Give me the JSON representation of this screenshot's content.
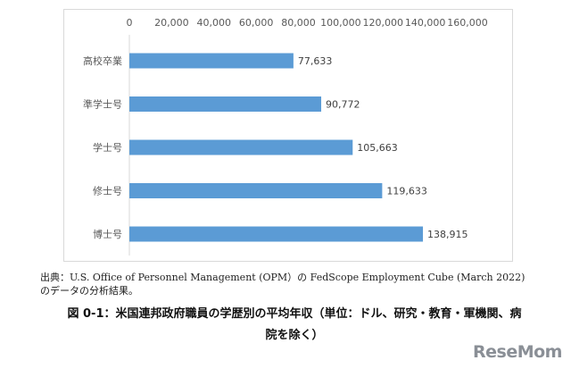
{
  "chart_data": {
    "type": "bar",
    "orientation": "horizontal",
    "categories": [
      "高校卒業",
      "準学士号",
      "学士号",
      "修士号",
      "博士号"
    ],
    "values": [
      77633,
      90772,
      105663,
      119633,
      138915
    ],
    "value_labels": [
      "77,633",
      "90,772",
      "105,663",
      "119,633",
      "138,915"
    ],
    "x_ticks": [
      "0",
      "20,000",
      "40,000",
      "60,000",
      "80,000",
      "100,000",
      "120,000",
      "140,000",
      "160,000"
    ],
    "xlim": [
      0,
      160000
    ],
    "axis_position": "top",
    "grid": false,
    "bar_color": "#5b9bd5"
  },
  "source_note": {
    "line1": "出典：U.S. Office of Personnel Management (OPM）の FedScope Employment Cube (March 2022)",
    "line2": "のデータの分析結果。"
  },
  "caption": {
    "line1": "図 0-1：米国連邦政府職員の学歴別の平均年収（単位：ドル、研究・教育・軍機関、病",
    "line2": "院を除く）"
  },
  "watermark": {
    "text": "ReseMom"
  }
}
